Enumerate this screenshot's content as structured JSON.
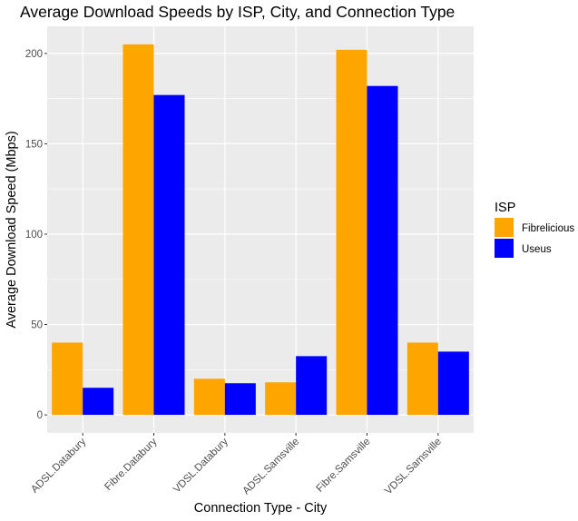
{
  "chart_data": {
    "type": "bar",
    "title": "Average Download Speeds by ISP, City, and Connection Type",
    "xlabel": "Connection Type - City",
    "ylabel": "Average Download Speed (Mbps)",
    "categories": [
      "ADSL.Databury",
      "Fibre.Databury",
      "VDSL.Databury",
      "ADSL.Samsville",
      "Fibre.Samsville",
      "VDSL.Samsville"
    ],
    "series": [
      {
        "name": "Fibrelicious",
        "color": "#FFA500",
        "values": [
          40,
          205,
          20,
          18,
          202,
          40
        ]
      },
      {
        "name": "Useus",
        "color": "#0000FF",
        "values": [
          15,
          177,
          17.5,
          32.5,
          182,
          35
        ]
      }
    ],
    "ylim": [
      -10,
      215
    ],
    "yticks": [
      0,
      50,
      100,
      150,
      200
    ],
    "grid": true,
    "panel_background": "#EBEBEB",
    "legend": {
      "title": "ISP",
      "position": "right"
    }
  }
}
